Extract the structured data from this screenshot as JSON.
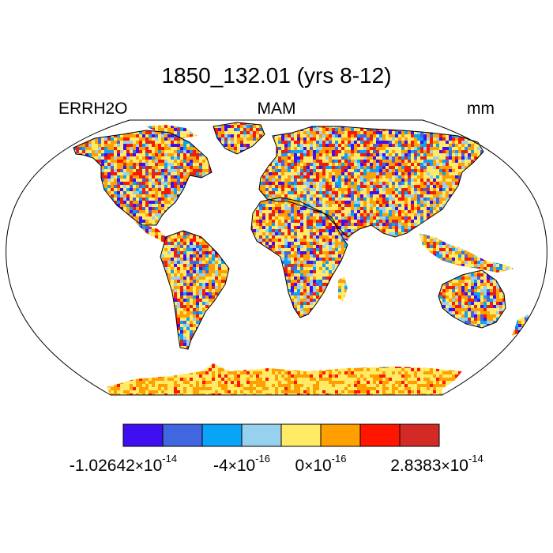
{
  "title": "1850_132.01 (yrs 8-12)",
  "left_label": "ERRH2O",
  "center_label": "MAM",
  "right_label": "mm",
  "colorbar": {
    "colors": [
      "#3F0FF0",
      "#4066E0",
      "#09A3F7",
      "#98D1ED",
      "#FFEB66",
      "#FF9F00",
      "#FF1500",
      "#D42A26"
    ],
    "labels": [
      {
        "mantissa": "-1.02642",
        "exponent": "-14"
      },
      {
        "mantissa": "-4",
        "exponent": "-16"
      },
      {
        "mantissa": "0",
        "exponent": "-16"
      },
      {
        "mantissa": "2.8383",
        "exponent": "-14"
      }
    ],
    "times_symbol": "×",
    "base": "10"
  },
  "chart_data": {
    "type": "heatmap",
    "projection": "Robinson",
    "variable": "ERRH2O",
    "season": "MAM",
    "units": "mm",
    "ocean_color": "#FFFFFF",
    "land_pattern": "noisy per-grid-cell values, mostly yellow/orange with scattered red, blue and light-blue cells; blue concentrations over central Africa, central Australia, northern South America and high northern latitudes; Antarctica mostly yellow/orange"
  }
}
